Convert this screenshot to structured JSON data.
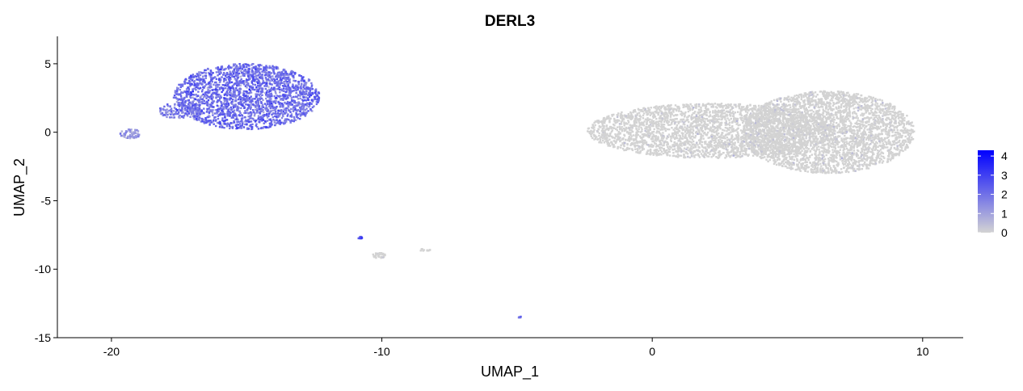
{
  "chart_data": {
    "type": "scatter",
    "title": "DERL3",
    "xlabel": "UMAP_1",
    "ylabel": "UMAP_2",
    "xlim": [
      -22,
      11.5
    ],
    "ylim": [
      -15,
      7
    ],
    "x_ticks": [
      -20,
      -10,
      0,
      10
    ],
    "y_ticks": [
      5,
      0,
      -5,
      -10,
      -15
    ],
    "grid": false,
    "legend_position": "right",
    "color_scale": {
      "low_color": "#d3d3d3",
      "high_color": "#0000ff",
      "range": [
        0,
        4.3
      ],
      "ticks": [
        0,
        1,
        2,
        3,
        4
      ]
    },
    "clusters": [
      {
        "name": "cluster-left-large",
        "cx": -15.0,
        "cy": 2.6,
        "rx": 2.7,
        "ry": 2.4,
        "n": 2200,
        "expr_mean": 1.9,
        "expr_sd": 0.5
      },
      {
        "name": "cluster-left-arm",
        "cx": -17.5,
        "cy": 1.6,
        "rx": 0.8,
        "ry": 0.6,
        "n": 140,
        "expr_mean": 1.6,
        "expr_sd": 0.5
      },
      {
        "name": "cluster-left-small",
        "cx": -19.3,
        "cy": -0.1,
        "rx": 0.4,
        "ry": 0.35,
        "n": 60,
        "expr_mean": 1.0,
        "expr_sd": 0.4
      },
      {
        "name": "cluster-right-a",
        "cx": 2.2,
        "cy": 0.1,
        "rx": 4.6,
        "ry": 2.0,
        "n": 3000,
        "expr_mean": 0.08,
        "expr_sd": 0.2
      },
      {
        "name": "cluster-right-b",
        "cx": 6.5,
        "cy": 0.0,
        "rx": 3.2,
        "ry": 3.0,
        "n": 3200,
        "expr_mean": 0.08,
        "expr_sd": 0.2
      },
      {
        "name": "cluster-small-1",
        "cx": -10.1,
        "cy": -9.0,
        "rx": 0.25,
        "ry": 0.2,
        "n": 40,
        "expr_mean": 0.2,
        "expr_sd": 0.3
      },
      {
        "name": "cluster-small-2",
        "cx": -10.8,
        "cy": -7.7,
        "rx": 0.08,
        "ry": 0.08,
        "n": 10,
        "expr_mean": 2.5,
        "expr_sd": 0.5
      },
      {
        "name": "cluster-small-3",
        "cx": -8.4,
        "cy": -8.6,
        "rx": 0.2,
        "ry": 0.1,
        "n": 12,
        "expr_mean": 0.1,
        "expr_sd": 0.1
      },
      {
        "name": "cluster-small-4",
        "cx": -4.9,
        "cy": -13.5,
        "rx": 0.06,
        "ry": 0.05,
        "n": 6,
        "expr_mean": 2.0,
        "expr_sd": 0.5
      }
    ]
  }
}
